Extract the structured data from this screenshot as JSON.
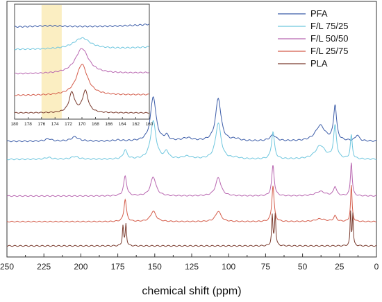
{
  "chart_data": {
    "type": "line",
    "xlabel": "chemical shift (ppm)",
    "ylabel": "",
    "xlim": [
      250,
      0
    ],
    "x_reversed": true,
    "xticks": [
      "250",
      "225",
      "200",
      "175",
      "150",
      "125",
      "100",
      "75",
      "50",
      "25",
      "0"
    ],
    "yticks_shown": false,
    "legend_position": "top-right",
    "series": [
      {
        "name": "PFA",
        "color": "#3b5ca8",
        "baseline": 0.82,
        "peaks": [
          [
            222,
            0.25,
            2.5
          ],
          [
            204,
            0.45,
            3
          ],
          [
            175,
            0.1,
            3
          ],
          [
            151,
            4.6,
            2.2
          ],
          [
            142,
            0.5,
            1.5
          ],
          [
            128,
            0.3,
            4
          ],
          [
            107,
            4.4,
            2.2
          ],
          [
            95,
            0.2,
            3
          ],
          [
            70,
            0.6,
            2.5
          ],
          [
            38,
            1.6,
            4
          ],
          [
            28,
            3.6,
            1.2
          ],
          [
            13,
            0.6,
            1.5
          ]
        ]
      },
      {
        "name": "F/L 75/25",
        "color": "#6ec6de",
        "baseline": 1.0,
        "peaks": [
          [
            222,
            0.2,
            2.5
          ],
          [
            204,
            0.3,
            3
          ],
          [
            170,
            1.0,
            1.5
          ],
          [
            151,
            4.2,
            2.2
          ],
          [
            142,
            0.8,
            1.5
          ],
          [
            128,
            0.3,
            4
          ],
          [
            107,
            4.0,
            2.2
          ],
          [
            95,
            0.15,
            3
          ],
          [
            70,
            3.0,
            1.2
          ],
          [
            38,
            1.5,
            4
          ],
          [
            28,
            3.6,
            1.2
          ],
          [
            17,
            2.6,
            0.8
          ]
        ]
      },
      {
        "name": "F/L 50/50",
        "color": "#b866b0",
        "baseline": 0.84,
        "peaks": [
          [
            170,
            2.6,
            1.2
          ],
          [
            151,
            2.5,
            2.2
          ],
          [
            107,
            2.4,
            2.2
          ],
          [
            70,
            4.0,
            1.0
          ],
          [
            38,
            0.6,
            4
          ],
          [
            28,
            1.2,
            1.2
          ],
          [
            17,
            4.4,
            0.7
          ]
        ]
      },
      {
        "name": "F/L 25/75",
        "color": "#d45c4a",
        "baseline": 0.86,
        "peaks": [
          [
            170,
            3.2,
            1.0
          ],
          [
            151,
            1.5,
            2.2
          ],
          [
            107,
            1.5,
            2.2
          ],
          [
            70,
            5.2,
            0.9
          ],
          [
            38,
            0.4,
            4
          ],
          [
            28,
            0.8,
            1.2
          ],
          [
            17,
            5.2,
            0.6
          ]
        ]
      },
      {
        "name": "PLA",
        "color": "#7a3b2e",
        "baseline": 1.0,
        "peaks": [
          [
            171.5,
            2.4,
            0.5
          ],
          [
            169.5,
            2.6,
            0.5
          ],
          [
            70.5,
            3.6,
            0.5
          ],
          [
            68.5,
            3.8,
            0.5
          ],
          [
            17.5,
            4.0,
            0.4
          ],
          [
            16.0,
            3.8,
            0.4
          ]
        ]
      }
    ],
    "inset": {
      "xlim": [
        180,
        160
      ],
      "xticks": [
        "180",
        "178",
        "176",
        "174",
        "172",
        "170",
        "168",
        "166",
        "164",
        "162",
        "160"
      ],
      "highlight_band": [
        176,
        173
      ],
      "highlight_color": "#fbeec2"
    }
  }
}
